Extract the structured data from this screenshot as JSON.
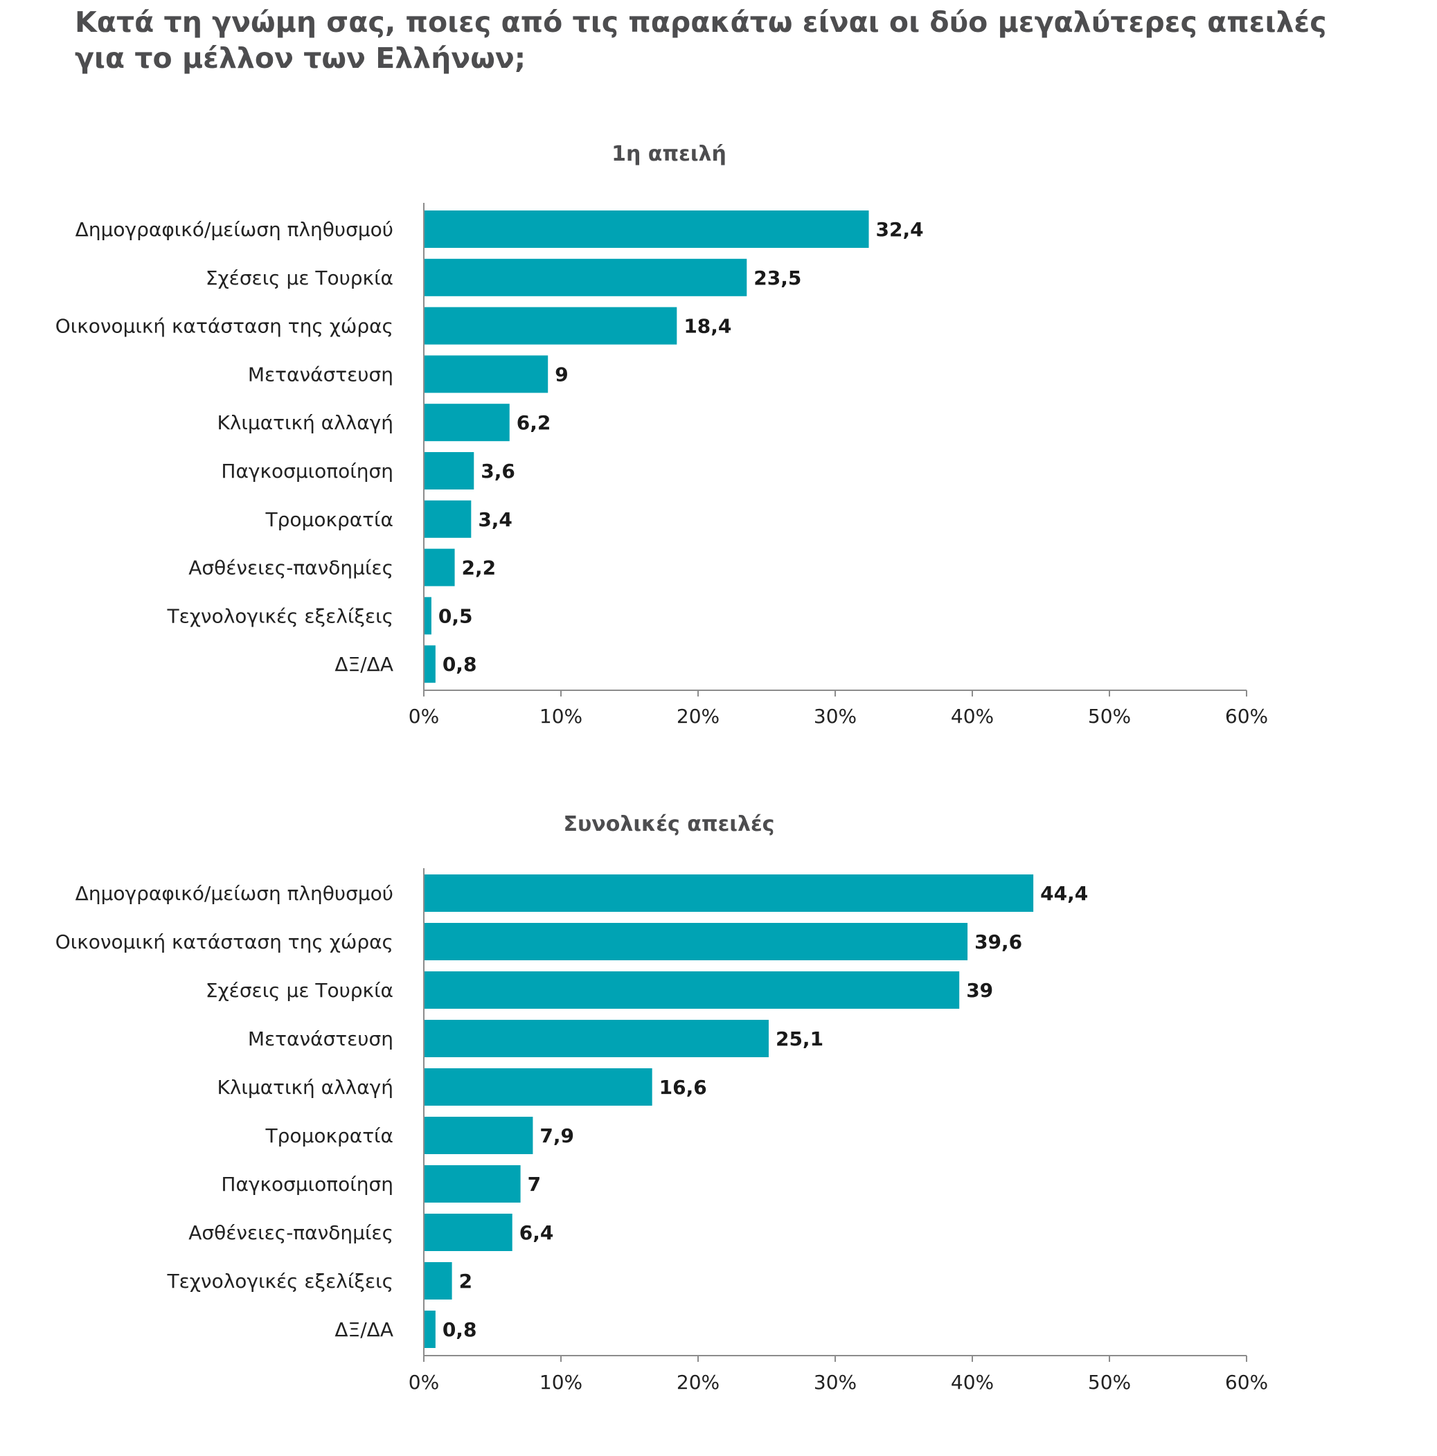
{
  "page": {
    "title_line1": "Κατά τη γνώμη σας, ποιες από τις παρακάτω είναι οι δύο μεγαλύτερες απειλές",
    "title_line2": "για το μέλλον των Ελλήνων;"
  },
  "colors": {
    "bar": "#00a3b4",
    "axis": "#8c8c8c",
    "title": "#4d4d4f"
  },
  "chart_data": [
    {
      "type": "bar",
      "orientation": "horizontal",
      "title": "1η απειλή",
      "categories": [
        "Δημογραφικό/μείωση πληθυσμού",
        "Σχέσεις με Τουρκία",
        "Οικονομική κατάσταση της χώρας",
        "Μετανάστευση",
        "Κλιματική αλλαγή",
        "Παγκοσμιοποίηση",
        "Τρομοκρατία",
        "Ασθένειες-πανδημίες",
        "Τεχνολογικές εξελίξεις",
        "ΔΞ/ΔΑ"
      ],
      "values": [
        32.4,
        23.5,
        18.4,
        9,
        6.2,
        3.6,
        3.4,
        2.2,
        0.5,
        0.8
      ],
      "value_labels": [
        "32,4",
        "23,5",
        "18,4",
        "9",
        "6,2",
        "3,6",
        "3,4",
        "2,2",
        "0,5",
        "0,8"
      ],
      "xlim": [
        0,
        60
      ],
      "xticks": [
        "0%",
        "10%",
        "20%",
        "30%",
        "40%",
        "50%",
        "60%"
      ],
      "grid": false,
      "legend": "none"
    },
    {
      "type": "bar",
      "orientation": "horizontal",
      "title": "Συνολικές απειλές",
      "categories": [
        "Δημογραφικό/μείωση πληθυσμού",
        "Οικονομική κατάσταση της χώρας",
        "Σχέσεις με Τουρκία",
        "Μετανάστευση",
        "Κλιματική αλλαγή",
        "Τρομοκρατία",
        "Παγκοσμιοποίηση",
        "Ασθένειες-πανδημίες",
        "Τεχνολογικές εξελίξεις",
        "ΔΞ/ΔΑ"
      ],
      "values": [
        44.4,
        39.6,
        39,
        25.1,
        16.6,
        7.9,
        7,
        6.4,
        2,
        0.8
      ],
      "value_labels": [
        "44,4",
        "39,6",
        "39",
        "25,1",
        "16,6",
        "7,9",
        "7",
        "6,4",
        "2",
        "0,8"
      ],
      "xlim": [
        0,
        60
      ],
      "xticks": [
        "0%",
        "10%",
        "20%",
        "30%",
        "40%",
        "50%",
        "60%"
      ],
      "grid": false,
      "legend": "none"
    }
  ]
}
